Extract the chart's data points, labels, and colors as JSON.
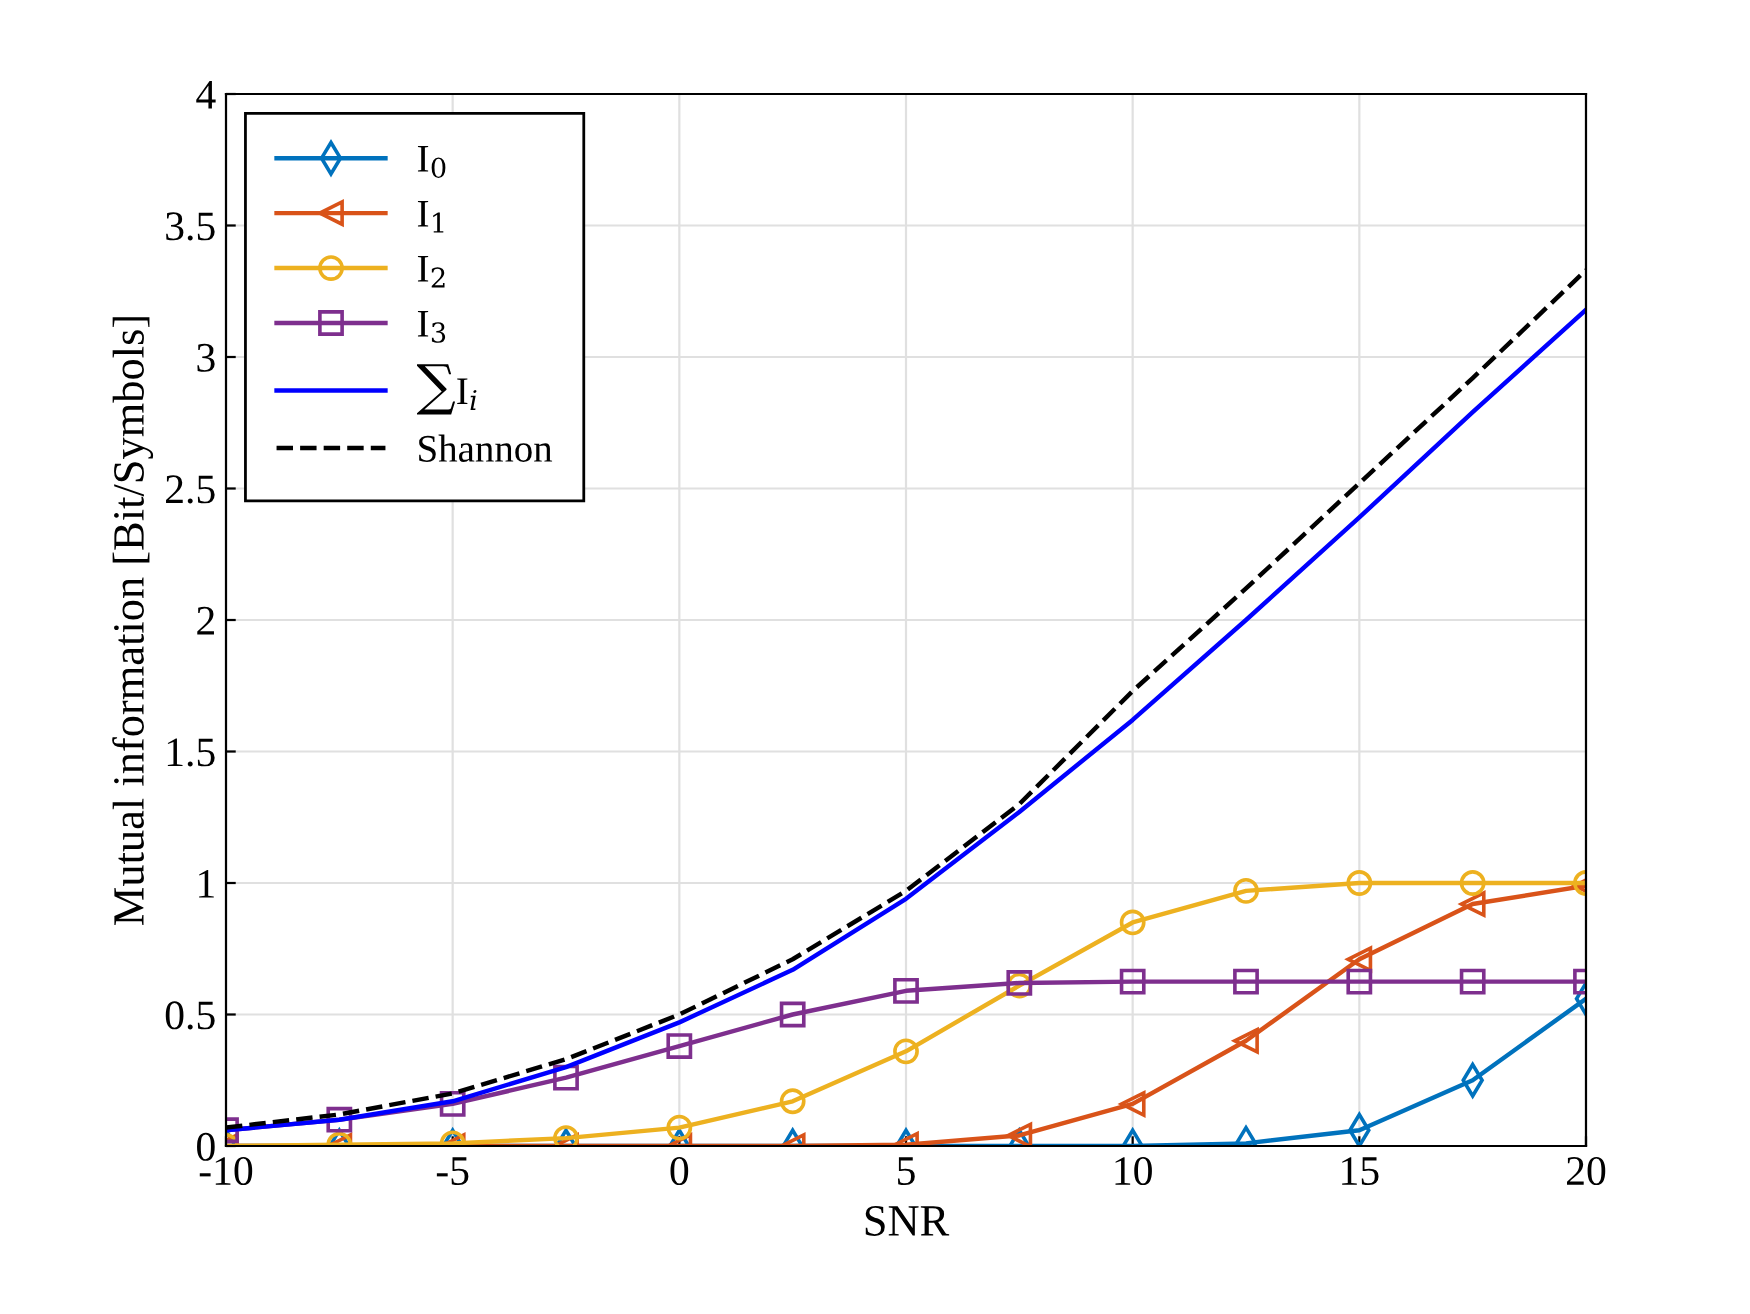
{
  "chart_data": {
    "type": "line",
    "xlabel": "SNR",
    "ylabel": "Mutual information [Bit/Symbols]",
    "x": [
      -10,
      -7.5,
      -5,
      -2.5,
      0,
      2.5,
      5,
      7.5,
      10,
      12.5,
      15,
      17.5,
      20
    ],
    "series": [
      {
        "name": "I$_{0}$",
        "color": "#0072bd",
        "marker": "diamond",
        "values": [
          0,
          0,
          0,
          0,
          0,
          0,
          0,
          0,
          0,
          0.01,
          0.06,
          0.25,
          0.56
        ]
      },
      {
        "name": "I$_{1}$",
        "color": "#d95319",
        "marker": "triangle",
        "values": [
          0,
          0,
          0,
          0,
          0,
          0,
          0.005,
          0.04,
          0.16,
          0.4,
          0.71,
          0.92,
          0.99
        ]
      },
      {
        "name": "I$_{2}$",
        "color": "#edb120",
        "marker": "circle",
        "values": [
          0,
          0.005,
          0.01,
          0.03,
          0.07,
          0.17,
          0.36,
          0.61,
          0.85,
          0.97,
          1.0,
          1.0,
          1.0
        ]
      },
      {
        "name": "I$_{3}$",
        "color": "#7e2f8e",
        "marker": "square",
        "values": [
          0.06,
          0.1,
          0.16,
          0.26,
          0.38,
          0.5,
          0.59,
          0.62,
          0.625,
          0.625,
          0.625,
          0.625,
          0.625
        ]
      },
      {
        "name": "∑I$_{i}$",
        "color": "#0000ff",
        "marker": "none",
        "values": [
          0.06,
          0.1,
          0.17,
          0.3,
          0.47,
          0.67,
          0.94,
          1.27,
          1.62,
          2.0,
          2.39,
          2.79,
          3.18
        ]
      },
      {
        "name": "Shannon",
        "color": "#000000",
        "marker": "none",
        "line_style": "dashed",
        "values": [
          0.07,
          0.12,
          0.2,
          0.33,
          0.5,
          0.71,
          0.97,
          1.3,
          1.73,
          2.12,
          2.52,
          2.92,
          3.33
        ]
      }
    ],
    "xlim": [
      -10,
      20
    ],
    "xticks": [
      -10,
      -5,
      0,
      5,
      10,
      15,
      20
    ],
    "ylim": [
      0,
      4
    ],
    "yticks": [
      0,
      0.5,
      1,
      1.5,
      2,
      2.5,
      3,
      3.5,
      4
    ],
    "grid": true,
    "legend": "top left"
  }
}
